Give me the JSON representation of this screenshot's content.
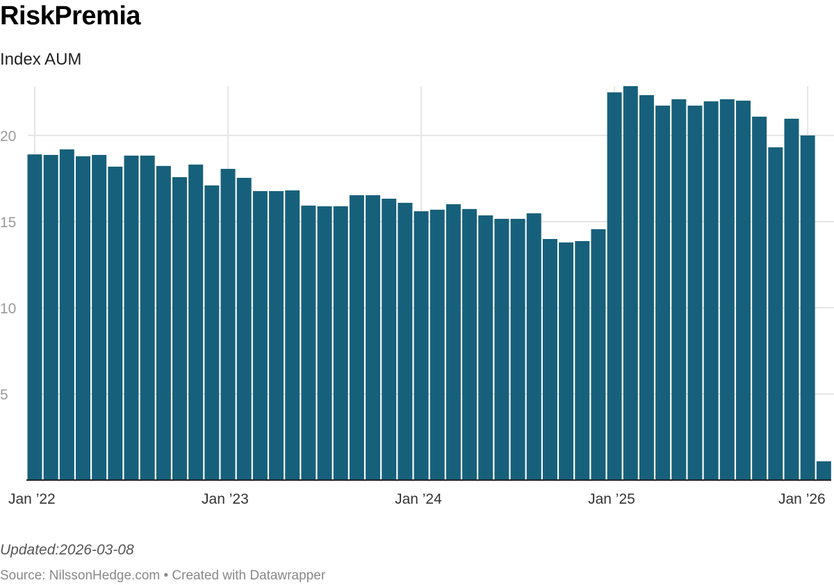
{
  "chart_data": {
    "type": "bar",
    "title": "RiskPremia",
    "subtitle": "Index AUM",
    "categories": [
      "2022-01",
      "2022-02",
      "2022-03",
      "2022-04",
      "2022-05",
      "2022-06",
      "2022-07",
      "2022-08",
      "2022-09",
      "2022-10",
      "2022-11",
      "2022-12",
      "2023-01",
      "2023-02",
      "2023-03",
      "2023-04",
      "2023-05",
      "2023-06",
      "2023-07",
      "2023-08",
      "2023-09",
      "2023-10",
      "2023-11",
      "2023-12",
      "2024-01",
      "2024-02",
      "2024-03",
      "2024-04",
      "2024-05",
      "2024-06",
      "2024-07",
      "2024-08",
      "2024-09",
      "2024-10",
      "2024-11",
      "2024-12",
      "2025-01",
      "2025-02",
      "2025-03",
      "2025-04",
      "2025-05",
      "2025-06",
      "2025-07",
      "2025-08",
      "2025-09",
      "2025-10",
      "2025-11",
      "2025-12",
      "2026-01",
      "2026-02"
    ],
    "values": [
      18.9,
      18.87,
      19.19,
      18.79,
      18.87,
      18.19,
      18.83,
      18.83,
      18.23,
      17.58,
      18.31,
      17.1,
      18.06,
      17.54,
      16.77,
      16.77,
      16.81,
      15.93,
      15.89,
      15.89,
      16.53,
      16.53,
      16.33,
      16.09,
      15.6,
      15.69,
      16.01,
      15.73,
      15.36,
      15.16,
      15.16,
      15.48,
      13.99,
      13.79,
      13.87,
      14.56,
      22.5,
      22.86,
      22.34,
      21.73,
      22.1,
      21.73,
      21.98,
      22.1,
      22.02,
      21.09,
      19.31,
      20.97,
      20.0,
      1.09
    ],
    "ylim": [
      0,
      22.86
    ],
    "yticks": [
      5,
      10,
      15,
      20
    ],
    "xticks": [
      {
        "label": "Jan ’22",
        "index": 0
      },
      {
        "label": "Jan ’23",
        "index": 12
      },
      {
        "label": "Jan ’24",
        "index": 24
      },
      {
        "label": "Jan ’25",
        "index": 36
      },
      {
        "label": "Jan ’26",
        "index": 48
      }
    ],
    "grid": true,
    "bar_color": "#17607b"
  },
  "footer": {
    "updated": "Updated:2026-03-08",
    "source": "Source: NilssonHedge.com • Created with Datawrapper"
  }
}
